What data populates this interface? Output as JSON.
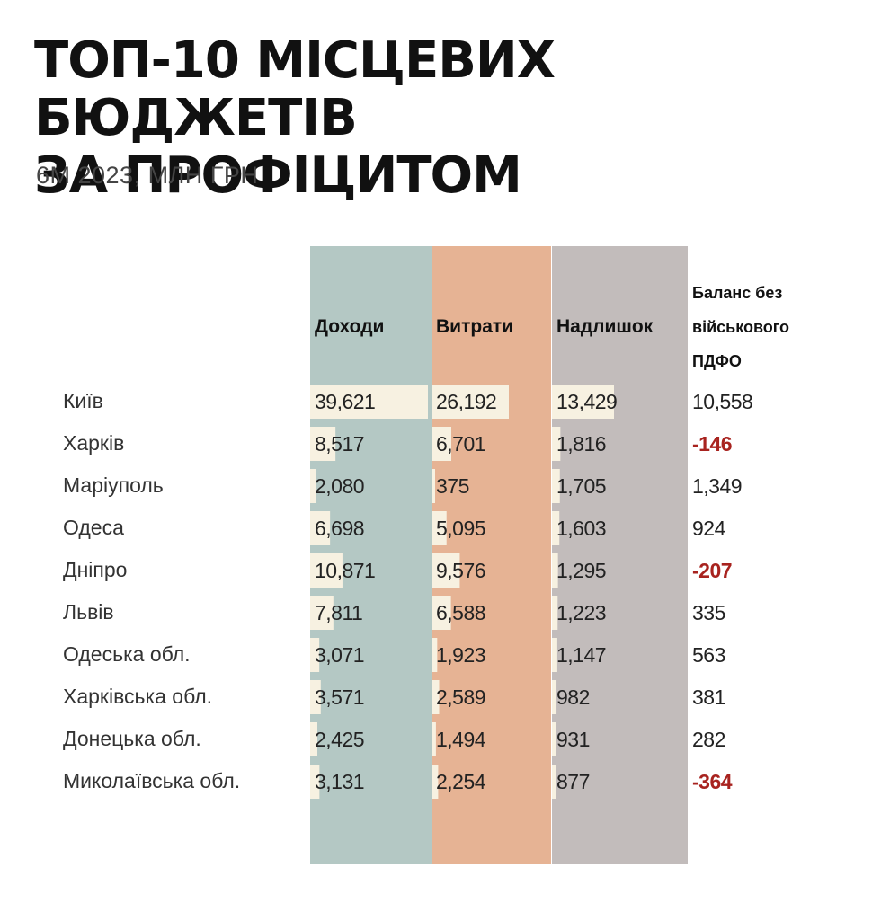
{
  "title_lines": [
    "ТОП-10 МІСЦЕВИХ БЮДЖЕТІВ",
    "ЗА ПРОФІЦИТОМ"
  ],
  "subtitle": "6М 2023, МЛН ГРН",
  "colors": {
    "revenue_col": "#b4c8c4",
    "expense_col": "#e6b394",
    "surplus_col": "#c2bcbb",
    "bar": "#f7f1e1",
    "negative": "#a8231f"
  },
  "chart_data": {
    "type": "table",
    "title": "ТОП-10 МІСЦЕВИХ БЮДЖЕТІВ ЗА ПРОФІЦИТОМ",
    "subtitle": "6М 2023, МЛН ГРН",
    "columns": [
      "Доходи",
      "Витрати",
      "Надлишок"
    ],
    "extra_column_lines": [
      "Баланс без",
      "військового",
      "ПДФО"
    ],
    "rows": [
      {
        "name": "Київ",
        "values": [
          "39,621",
          "26,192",
          "13,429"
        ],
        "balance": "10,558"
      },
      {
        "name": "Харків",
        "values": [
          "8,517",
          "6,701",
          "1,816"
        ],
        "balance": "-146"
      },
      {
        "name": "Маріуполь",
        "values": [
          "2,080",
          "375",
          "1,705"
        ],
        "balance": "1,349"
      },
      {
        "name": "Одеса",
        "values": [
          "6,698",
          "5,095",
          "1,603"
        ],
        "balance": "924"
      },
      {
        "name": "Дніпро",
        "values": [
          "10,871",
          "9,576",
          "1,295"
        ],
        "balance": "-207"
      },
      {
        "name": "Львів",
        "values": [
          "7,811",
          "6,588",
          "1,223"
        ],
        "balance": "335"
      },
      {
        "name": "Одеська обл.",
        "values": [
          "3,071",
          "1,923",
          "1,147"
        ],
        "balance": "563"
      },
      {
        "name": "Харківська обл.",
        "values": [
          "3,571",
          "2,589",
          "982"
        ],
        "balance": "381"
      },
      {
        "name": "Донецька обл.",
        "values": [
          "2,425",
          "1,494",
          "931"
        ],
        "balance": "282"
      },
      {
        "name": "Миколаївська обл.",
        "values": [
          "3,131",
          "2,254",
          "877"
        ],
        "balance": "-364"
      }
    ]
  }
}
